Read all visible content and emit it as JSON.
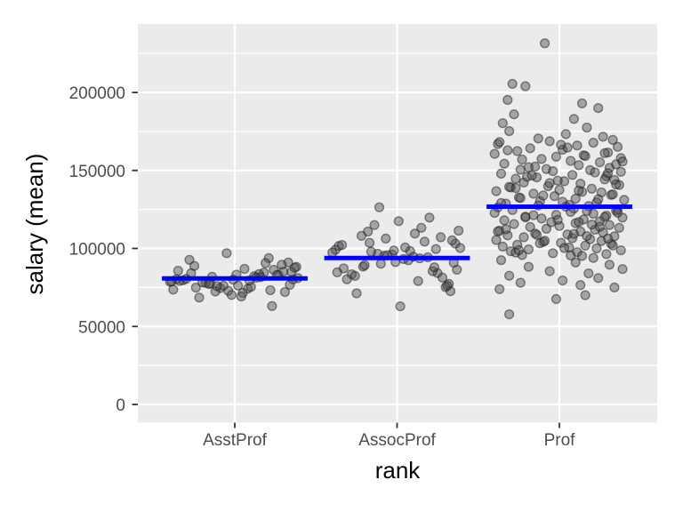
{
  "chart_data": {
    "type": "scatter",
    "variant": "jittered-points-with-mean-crossbars",
    "title": "",
    "xlabel": "rank",
    "ylabel": "salary (mean)",
    "categories": [
      "AsstProf",
      "AssocProf",
      "Prof"
    ],
    "x_tick_labels": [
      "AsstProf",
      "AssocProf",
      "Prof"
    ],
    "y_ticks": [
      {
        "value": 0,
        "label": "0"
      },
      {
        "value": 50000,
        "label": "50000"
      },
      {
        "value": 100000,
        "label": "100000"
      },
      {
        "value": 150000,
        "label": "150000"
      },
      {
        "value": 200000,
        "label": "200000"
      }
    ],
    "y_minor_ticks": [
      25000,
      75000,
      125000,
      175000,
      225000
    ],
    "ylim": [
      -11600,
      243800
    ],
    "data_y_range": [
      57800,
      231545
    ],
    "jitter_width": 0.4,
    "mean_bar_halfwidth_units": 0.45,
    "group_means": [
      80776,
      93876,
      126772
    ],
    "legend": "none",
    "grid": "on",
    "values_unit": "thousands of USD",
    "colors": {
      "mean_bar": "#0000FF",
      "point_fill": "#4D4D4D",
      "point_stroke": "#1A1A1A",
      "panel_bg": "#EBEBEB",
      "grid": "#FFFFFF",
      "tick_text": "#4D4D4D",
      "tick_mark": "#333333",
      "axis_title": "#000000"
    },
    "groups": [
      {
        "name": "AsstProf",
        "mean": 80776,
        "dx": [
          -0.32,
          0.08,
          0.27,
          -0.15,
          0.38,
          -0.04,
          0.18,
          -0.36,
          0.02,
          0.33,
          -0.22,
          0.12,
          -0.4,
          0.24,
          -0.09,
          0.36,
          -0.28,
          0.05,
          0.15,
          -0.18,
          0.3,
          -0.12,
          0.39,
          -0.25,
          0.1,
          -0.34,
          0.21,
          -0.02,
          0.35,
          -0.2,
          0.06,
          -0.38,
          0.16,
          0.29,
          -0.07,
          -0.3,
          0.23,
          0.01,
          -0.16,
          0.37,
          -0.24,
          0.13,
          -0.05,
          0.31,
          -0.35,
          0.09,
          0.19,
          -0.11,
          0.26,
          -0.39,
          0.04,
          -0.27,
          0.34,
          -0.14,
          0.22,
          -0.01
        ],
        "salaries_k": [
          79.6,
          74.2,
          83.1,
          77.5,
          88.2,
          72.8,
          84.5,
          80.3,
          76.2,
          91.0,
          68.5,
          82.2,
          78.6,
          86.3,
          74.6,
          80.1,
          92.7,
          71.5,
          83.6,
          77.9,
          85.2,
          72.4,
          81.0,
          88.8,
          75.4,
          79.2,
          93.8,
          70.2,
          84.9,
          78.2,
          86.9,
          73.6,
          81.6,
          89.6,
          76.1,
          80.5,
          63.1,
          83.2,
          77.2,
          87.6,
          74.9,
          81.2,
          97.0,
          72.1,
          85.7,
          79.5,
          90.6,
          75.9,
          82.9,
          78.9,
          69.2,
          84.1,
          76.7,
          81.9,
          73.2,
          80.0
        ]
      },
      {
        "name": "AssocProf",
        "mean": 93876,
        "dx": [
          0.02,
          -0.11,
          0.25,
          -0.08,
          0.36,
          -0.21,
          0.11,
          0.32,
          -0.38,
          0.07,
          -0.14,
          0.28,
          -0.03,
          0.17,
          -0.33,
          0.39,
          -0.25,
          0.04,
          -0.18,
          0.22,
          -0.4,
          0.13,
          0.34,
          -0.1,
          0.01,
          -0.28,
          0.19,
          -0.36,
          0.3,
          0.08,
          -0.22,
          0.37,
          -0.06,
          0.15,
          -0.31,
          0.24,
          -0.01,
          -0.17,
          0.33,
          -0.12,
          0.27,
          -0.37,
          0.05,
          0.2,
          -0.26,
          0.1,
          0.38,
          -0.2,
          -0.02,
          0.31,
          -0.34,
          0.14,
          0.23,
          -0.07,
          0.35,
          -0.16
        ],
        "salaries_k": [
          62.9,
          126.4,
          84.2,
          95.3,
          103.1,
          88.4,
          109.5,
          77.3,
          99.2,
          92.4,
          115.0,
          81.3,
          96.1,
          104.4,
          87.2,
          100.3,
          71.2,
          93.2,
          110.8,
          85.4,
          97.4,
          79.1,
          105.2,
          90.2,
          117.5,
          83.4,
          94.3,
          101.6,
          75.2,
          98.3,
          108.1,
          86.4,
          95.6,
          113.2,
          80.2,
          99.6,
          91.3,
          103.6,
          72.6,
          96.6,
          107.2,
          84.7,
          100.7,
          119.8,
          82.4,
          94.7,
          111.4,
          89.3,
          98.7,
          76.1,
          102.2,
          93.6,
          87.9,
          106.3,
          90.9,
          97.9
        ]
      },
      {
        "name": "Prof",
        "mean": 126772,
        "dx": [
          -0.09,
          -0.29,
          -0.21,
          -0.32,
          0.14,
          0.24,
          -0.28,
          0.09,
          -0.35,
          0.17,
          -0.31,
          0.04,
          0.27,
          -0.13,
          0.33,
          -0.06,
          0.21,
          -0.38,
          0.11,
          0.36,
          -0.18,
          0.02,
          -0.26,
          0.3,
          -0.4,
          0.15,
          -0.02,
          0.38,
          -0.23,
          0.07,
          0.25,
          -0.34,
          0.12,
          -0.15,
          0.31,
          -0.08,
          0.19,
          -0.37,
          0.05,
          0.28,
          -0.11,
          0.35,
          -0.24,
          0.01,
          -0.32,
          0.16,
          0.39,
          -0.19,
          -0.04,
          0.22,
          -0.36,
          0.08,
          0.29,
          -0.14,
          -0.27,
          0.34,
          0.03,
          -0.22,
          0.13,
          0.37,
          -0.07,
          -0.3,
          0.2,
          0.0,
          -0.39,
          0.26,
          -0.16,
          0.32,
          -0.03,
          -0.25,
          0.1,
          0.4,
          -0.12,
          0.23,
          -0.33,
          0.06,
          0.18,
          -0.38,
          0.09,
          0.3,
          -0.2,
          -0.01,
          0.35,
          -0.27,
          0.14,
          -0.1,
          0.24,
          -0.36,
          0.04,
          0.38,
          -0.17,
          0.28,
          -0.06,
          -0.31,
          0.12,
          0.33,
          -0.24,
          0.02,
          -0.13,
          0.36,
          -0.29,
          0.17,
          0.07,
          -0.4,
          0.21,
          -0.02,
          0.29,
          -0.21,
          0.39,
          -0.11,
          0.15,
          -0.34,
          0.25,
          -0.05,
          0.1,
          -0.28,
          0.31,
          0.0,
          -0.18,
          0.37,
          -0.08,
          0.22,
          -0.37,
          0.13,
          0.27,
          -0.15,
          0.05,
          -0.32,
          0.34,
          -0.22,
          0.08,
          0.19,
          -0.39,
          0.26,
          -0.1,
          0.01,
          0.32,
          -0.26,
          0.16,
          -0.35,
          0.06,
          0.23,
          -0.19,
          0.38,
          -0.3,
          0.11,
          -0.04,
          0.29,
          -0.23,
          0.14,
          0.35,
          -0.16,
          -0.01,
          0.2,
          -0.33,
          0.09,
          0.3,
          -0.12,
          0.03,
          -0.27,
          0.36,
          -0.21,
          0.12,
          0.25,
          -0.38,
          0.17,
          -0.09,
          0.33,
          -0.25,
          0.07,
          0.28,
          -0.14,
          0.21,
          -0.36,
          0.1,
          0.31,
          -0.19,
          0.39,
          -0.06,
          0.18,
          -0.31,
          0.24,
          0.02,
          -0.24,
          0.13,
          0.34,
          -0.37,
          0.16,
          -0.02,
          -0.31
        ],
        "salaries_k": [
          231.5,
          205.5,
          204.0,
          195.2,
          193.0,
          190.0,
          186.0,
          183.0,
          180.3,
          177.5,
          175.2,
          173.3,
          171.6,
          170.5,
          169.6,
          168.7,
          167.8,
          166.9,
          166.0,
          165.1,
          164.2,
          163.3,
          162.4,
          161.5,
          160.6,
          159.7,
          158.8,
          157.9,
          157.0,
          156.1,
          155.2,
          154.3,
          153.4,
          152.5,
          151.7,
          150.9,
          150.2,
          168.2,
          164.7,
          161.1,
          157.4,
          153.9,
          150.5,
          166.5,
          162.9,
          159.2,
          155.7,
          152.1,
          149.5,
          148.7,
          147.9,
          147.1,
          146.3,
          145.5,
          144.7,
          143.9,
          143.1,
          142.3,
          141.5,
          140.7,
          139.9,
          139.1,
          138.3,
          137.5,
          136.7,
          135.9,
          135.1,
          134.3,
          133.5,
          132.7,
          131.9,
          131.1,
          130.3,
          129.5,
          128.7,
          127.9,
          127.1,
          126.3,
          125.5,
          148.2,
          145.9,
          143.5,
          141.1,
          138.7,
          136.3,
          133.9,
          131.5,
          129.1,
          126.7,
          149.1,
          146.7,
          144.3,
          141.9,
          139.5,
          137.1,
          134.7,
          132.3,
          129.9,
          127.5,
          125.1,
          124.6,
          124.0,
          123.4,
          122.8,
          122.2,
          121.6,
          121.0,
          120.4,
          119.8,
          119.2,
          118.6,
          118.0,
          117.4,
          116.8,
          116.2,
          115.6,
          115.0,
          114.4,
          113.8,
          113.2,
          112.6,
          112.0,
          111.4,
          110.8,
          110.2,
          109.6,
          109.0,
          108.4,
          107.8,
          107.2,
          106.6,
          106.0,
          105.4,
          104.8,
          104.2,
          103.6,
          103.0,
          102.4,
          101.8,
          101.2,
          100.6,
          100.0,
          99.4,
          98.8,
          98.2,
          97.6,
          97.0,
          96.4,
          95.8,
          95.2,
          124.3,
          121.3,
          118.3,
          115.3,
          112.3,
          109.3,
          106.3,
          103.3,
          100.3,
          97.3,
          122.9,
          119.9,
          116.9,
          113.9,
          110.9,
          107.9,
          104.9,
          101.9,
          98.9,
          95.5,
          120.1,
          108.7,
          93.9,
          92.5,
          91.0,
          89.6,
          88.2,
          86.8,
          85.4,
          84.0,
          82.5,
          81.0,
          79.5,
          78.0,
          76.5,
          75.0,
          73.9,
          70.0,
          67.6,
          57.8
        ]
      }
    ]
  }
}
